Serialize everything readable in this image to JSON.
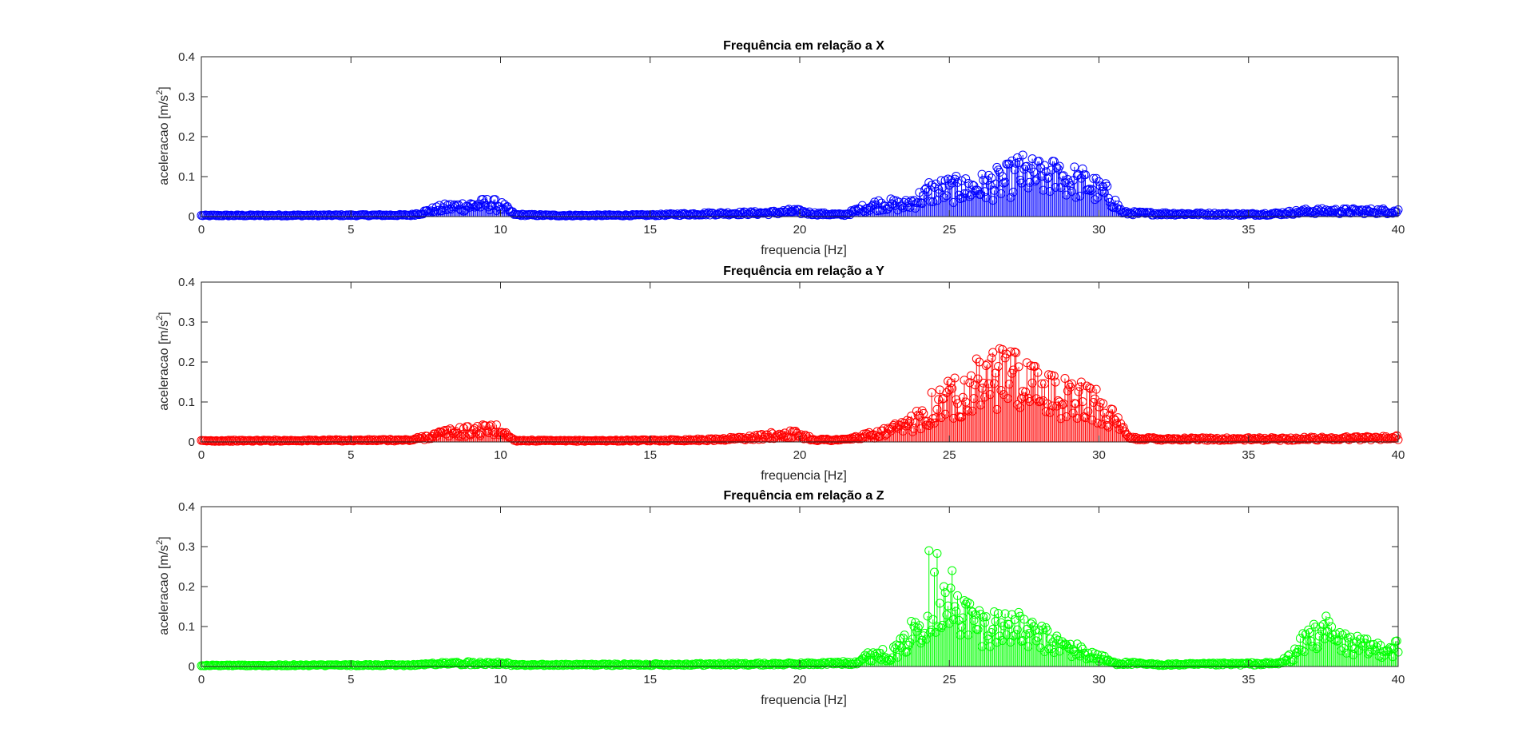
{
  "chart_data": [
    {
      "type": "stem",
      "title": "Frequência em relação a X",
      "xlabel": "frequencia [Hz]",
      "ylabel_prefix": "aceleracao [m/s",
      "ylabel_sup": "2",
      "ylabel_suffix": "]",
      "xlim": [
        0,
        40
      ],
      "ylim": [
        0,
        0.4
      ],
      "xticks": [
        "0",
        "5",
        "10",
        "15",
        "20",
        "25",
        "30",
        "35",
        "40"
      ],
      "yticks": [
        "0",
        "0.1",
        "0.2",
        "0.3",
        "0.4"
      ],
      "color": "#0000ff",
      "grid": false,
      "spectrum_points": [
        [
          0,
          0.003
        ],
        [
          7,
          0.004
        ],
        [
          7.6,
          0.015
        ],
        [
          8.2,
          0.025
        ],
        [
          9,
          0.03
        ],
        [
          9.6,
          0.035
        ],
        [
          10,
          0.03
        ],
        [
          10.5,
          0.005
        ],
        [
          12,
          0.003
        ],
        [
          15,
          0.004
        ],
        [
          17,
          0.008
        ],
        [
          19,
          0.01
        ],
        [
          19.8,
          0.015
        ],
        [
          20.5,
          0.008
        ],
        [
          21.5,
          0.005
        ],
        [
          22.4,
          0.03
        ],
        [
          22.8,
          0.035
        ],
        [
          23.5,
          0.03
        ],
        [
          24,
          0.05
        ],
        [
          24.5,
          0.07
        ],
        [
          25,
          0.075
        ],
        [
          25.5,
          0.075
        ],
        [
          26,
          0.08
        ],
        [
          26.5,
          0.09
        ],
        [
          27,
          0.1
        ],
        [
          27.3,
          0.12
        ],
        [
          27.8,
          0.11
        ],
        [
          28.4,
          0.11
        ],
        [
          29,
          0.1
        ],
        [
          29.6,
          0.09
        ],
        [
          30,
          0.07
        ],
        [
          30.3,
          0.06
        ],
        [
          30.8,
          0.01
        ],
        [
          32,
          0.008
        ],
        [
          35,
          0.006
        ],
        [
          36,
          0.008
        ],
        [
          37,
          0.015
        ],
        [
          38,
          0.015
        ],
        [
          40,
          0.015
        ]
      ],
      "peaks": [
        [
          24.3,
          0.085
        ],
        [
          25.4,
          0.09
        ],
        [
          27,
          0.132
        ],
        [
          27.3,
          0.135
        ],
        [
          28.2,
          0.128
        ],
        [
          28.7,
          0.126
        ],
        [
          29.3,
          0.105
        ]
      ]
    },
    {
      "type": "stem",
      "title": "Frequência em relação a Y",
      "xlabel": "frequencia [Hz]",
      "ylabel_prefix": "aceleracao [m/s",
      "ylabel_sup": "2",
      "ylabel_suffix": "]",
      "xlim": [
        0,
        40
      ],
      "ylim": [
        0,
        0.4
      ],
      "xticks": [
        "0",
        "5",
        "10",
        "15",
        "20",
        "25",
        "30",
        "35",
        "40"
      ],
      "yticks": [
        "0",
        "0.1",
        "0.2",
        "0.3",
        "0.4"
      ],
      "color": "#ff0000",
      "grid": false,
      "spectrum_points": [
        [
          0,
          0.003
        ],
        [
          7,
          0.005
        ],
        [
          7.6,
          0.015
        ],
        [
          8.2,
          0.025
        ],
        [
          9,
          0.03
        ],
        [
          9.7,
          0.035
        ],
        [
          10,
          0.03
        ],
        [
          10.5,
          0.004
        ],
        [
          12,
          0.003
        ],
        [
          15,
          0.004
        ],
        [
          17,
          0.006
        ],
        [
          18.5,
          0.012
        ],
        [
          19.5,
          0.022
        ],
        [
          20,
          0.02
        ],
        [
          20.5,
          0.006
        ],
        [
          21.5,
          0.006
        ],
        [
          22.5,
          0.02
        ],
        [
          23.5,
          0.04
        ],
        [
          24,
          0.07
        ],
        [
          24.5,
          0.1
        ],
        [
          25,
          0.12
        ],
        [
          25.5,
          0.14
        ],
        [
          26,
          0.16
        ],
        [
          26.5,
          0.17
        ],
        [
          27,
          0.18
        ],
        [
          27.5,
          0.15
        ],
        [
          28,
          0.14
        ],
        [
          28.5,
          0.13
        ],
        [
          29,
          0.12
        ],
        [
          29.5,
          0.11
        ],
        [
          30,
          0.1
        ],
        [
          30.3,
          0.08
        ],
        [
          31,
          0.01
        ],
        [
          33,
          0.008
        ],
        [
          36,
          0.008
        ],
        [
          40,
          0.012
        ]
      ],
      "peaks": [
        [
          26.4,
          0.21
        ],
        [
          26.9,
          0.22
        ],
        [
          27.2,
          0.225
        ],
        [
          26,
          0.2
        ],
        [
          28.5,
          0.165
        ],
        [
          29.4,
          0.15
        ],
        [
          25.2,
          0.16
        ]
      ]
    },
    {
      "type": "stem",
      "title": "Frequência em relação a Z",
      "xlabel": "frequencia [Hz]",
      "ylabel_prefix": "aceleracao [m/s",
      "ylabel_sup": "2",
      "ylabel_suffix": "]",
      "xlim": [
        0,
        40
      ],
      "ylim": [
        0,
        0.4
      ],
      "xticks": [
        "0",
        "5",
        "10",
        "15",
        "20",
        "25",
        "30",
        "35",
        "40"
      ],
      "yticks": [
        "0",
        "0.1",
        "0.2",
        "0.3",
        "0.4"
      ],
      "color": "#00ff00",
      "grid": false,
      "spectrum_points": [
        [
          0,
          0.003
        ],
        [
          7,
          0.004
        ],
        [
          8,
          0.008
        ],
        [
          10,
          0.01
        ],
        [
          10.5,
          0.004
        ],
        [
          14,
          0.005
        ],
        [
          17,
          0.006
        ],
        [
          20,
          0.007
        ],
        [
          21.8,
          0.01
        ],
        [
          22.5,
          0.035
        ],
        [
          23,
          0.03
        ],
        [
          23.5,
          0.06
        ],
        [
          24,
          0.12
        ],
        [
          24.5,
          0.18
        ],
        [
          25,
          0.16
        ],
        [
          25.5,
          0.14
        ],
        [
          26,
          0.11
        ],
        [
          27,
          0.11
        ],
        [
          28,
          0.08
        ],
        [
          29,
          0.05
        ],
        [
          30,
          0.025
        ],
        [
          30.5,
          0.01
        ],
        [
          32,
          0.005
        ],
        [
          36,
          0.008
        ],
        [
          36.5,
          0.03
        ],
        [
          37,
          0.08
        ],
        [
          37.5,
          0.1
        ],
        [
          38,
          0.07
        ],
        [
          39,
          0.05
        ],
        [
          40,
          0.05
        ]
      ],
      "peaks": [
        [
          24.3,
          0.29
        ],
        [
          24.6,
          0.283
        ],
        [
          25.1,
          0.24
        ],
        [
          24.8,
          0.2
        ],
        [
          25.5,
          0.165
        ],
        [
          26,
          0.14
        ],
        [
          27.1,
          0.13
        ],
        [
          37.5,
          0.105
        ]
      ]
    }
  ]
}
